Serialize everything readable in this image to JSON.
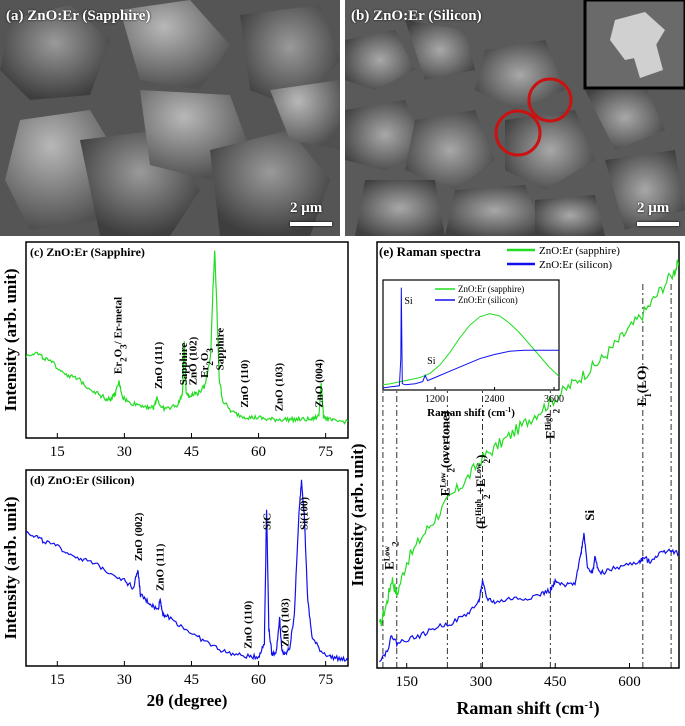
{
  "sem_a": {
    "label": "(a) ZnO:Er (Sapphire)",
    "scale": "2 μm"
  },
  "sem_b": {
    "label": "(b) ZnO:Er (Silicon)",
    "scale": "2 μm"
  },
  "colors": {
    "green": "#22dd22",
    "blue": "#1010ee",
    "red": "#cc1111"
  },
  "chart_data": [
    {
      "type": "line",
      "id": "c",
      "title": "(c) ZnO:Er (Sapphire)",
      "ylabel": "Intensity (arb. unit)",
      "xlim": [
        8,
        80
      ],
      "xticks": [
        15,
        30,
        45,
        60,
        75
      ],
      "color": "green",
      "series": [
        {
          "x": [
            8,
            10,
            12,
            14,
            16,
            18,
            20,
            22,
            24,
            26,
            27,
            28,
            28.8,
            29.6,
            31,
            33,
            35,
            36.5,
            37.3,
            38.2,
            40,
            42,
            43.0,
            43.4,
            43.8,
            44.5,
            45.3,
            46.5,
            48,
            49.3,
            49.8,
            50.2,
            50.6,
            51.2,
            52,
            54,
            56,
            58,
            60,
            62,
            64,
            66,
            68,
            70,
            72,
            73.5,
            74.0,
            74.5,
            75.5,
            77,
            80
          ],
          "y": [
            0.44,
            0.46,
            0.43,
            0.4,
            0.36,
            0.33,
            0.31,
            0.27,
            0.24,
            0.21,
            0.21,
            0.24,
            0.3,
            0.22,
            0.19,
            0.18,
            0.17,
            0.16,
            0.22,
            0.16,
            0.16,
            0.18,
            0.24,
            0.52,
            0.25,
            0.22,
            0.24,
            0.24,
            0.28,
            0.45,
            0.8,
            1.0,
            0.75,
            0.32,
            0.2,
            0.14,
            0.12,
            0.11,
            0.11,
            0.1,
            0.1,
            0.1,
            0.1,
            0.1,
            0.1,
            0.12,
            0.3,
            0.12,
            0.1,
            0.09,
            0.09
          ]
        }
      ],
      "annotations": [
        {
          "text": "Er",
          "sub": "2",
          "text2": "O",
          "sub2": "3",
          "text3": "/ Er-metal",
          "x": 28.5
        },
        {
          "text": "ZnO (111)",
          "x": 37.5
        },
        {
          "text": "Sapphire",
          "x": 43.1
        },
        {
          "text": "ZnO (102)",
          "x": 45.2
        },
        {
          "text": "Er",
          "sub": "2",
          "text2": "O",
          "sub2": "3",
          "x": 47.8
        },
        {
          "text": "Sapphire",
          "x": 51.3
        },
        {
          "text": "ZnO (110)",
          "x": 56.8
        },
        {
          "text": "ZnO (103)",
          "x": 64.5
        },
        {
          "text": "ZnO (004)",
          "x": 73.4
        }
      ]
    },
    {
      "type": "line",
      "id": "d",
      "title": "(d) ZnO:Er (Silicon)",
      "ylabel": "Intensity (arb. unit)",
      "xlabel": "2θ (degree)",
      "xlim": [
        8,
        80
      ],
      "xticks": [
        15,
        30,
        45,
        60,
        75
      ],
      "color": "blue",
      "series": [
        {
          "x": [
            8,
            10,
            12,
            15,
            18,
            21,
            24,
            27,
            30,
            32,
            33.0,
            33.6,
            34.5,
            36,
            37.5,
            38.0,
            38.6,
            40,
            43,
            46,
            49,
            52,
            55,
            58,
            60,
            61.3,
            61.8,
            62.3,
            63,
            64,
            64.7,
            65.2,
            66,
            67,
            68,
            69,
            69.6,
            70.2,
            71,
            72,
            74,
            76,
            78,
            80
          ],
          "y": [
            0.72,
            0.7,
            0.67,
            0.64,
            0.6,
            0.57,
            0.54,
            0.5,
            0.46,
            0.42,
            0.52,
            0.38,
            0.36,
            0.33,
            0.3,
            0.36,
            0.28,
            0.26,
            0.21,
            0.16,
            0.12,
            0.08,
            0.06,
            0.05,
            0.05,
            0.12,
            0.85,
            0.2,
            0.06,
            0.08,
            0.26,
            0.08,
            0.06,
            0.1,
            0.28,
            0.8,
            1.0,
            0.82,
            0.35,
            0.15,
            0.08,
            0.05,
            0.04,
            0.03
          ]
        }
      ],
      "annotations": [
        {
          "text": "ZnO (002)",
          "x": 33.0
        },
        {
          "text": "ZnO (111)",
          "x": 37.8
        },
        {
          "text": "ZnO (110)",
          "x": 57.5
        },
        {
          "text": "SiC",
          "x": 61.8
        },
        {
          "text": "ZnO (103)",
          "x": 65.8
        },
        {
          "text": "Si(100)",
          "x": 70.0
        }
      ]
    },
    {
      "type": "line",
      "id": "e",
      "title": "(e) Raman spectra",
      "ylabel": "Intensity (arb. unit)",
      "xlabel_main": "Raman shift (cm",
      "xlabel_sup": "-1",
      "xlabel_end": ")",
      "xlim": [
        90,
        700
      ],
      "xticks": [
        150,
        300,
        450,
        600
      ],
      "legend": {
        "position": "top-right",
        "entries": [
          "ZnO:Er (sapphire)",
          "ZnO:Er (silicon)"
        ]
      },
      "series": [
        {
          "name": "ZnO:Er (sapphire)",
          "color": "green",
          "x": [
            95,
            110,
            120,
            130,
            150,
            180,
            210,
            240,
            270,
            300,
            330,
            360,
            390,
            420,
            450,
            480,
            510,
            540,
            570,
            600,
            630,
            660,
            690,
            700
          ],
          "y": [
            0.1,
            0.16,
            0.22,
            0.18,
            0.26,
            0.32,
            0.37,
            0.42,
            0.46,
            0.51,
            0.54,
            0.57,
            0.6,
            0.63,
            0.66,
            0.69,
            0.72,
            0.75,
            0.79,
            0.83,
            0.87,
            0.92,
            0.97,
            0.99
          ]
        },
        {
          "name": "ZnO:Er (silicon)",
          "color": "blue",
          "x": [
            95,
            110,
            120,
            130,
            150,
            180,
            210,
            240,
            270,
            295,
            303,
            312,
            330,
            360,
            390,
            420,
            440,
            450,
            470,
            490,
            502,
            508,
            515,
            525,
            530,
            540,
            560,
            590,
            620,
            630,
            640,
            660,
            680,
            700
          ],
          "y": [
            0.02,
            0.04,
            0.08,
            0.06,
            0.07,
            0.08,
            0.1,
            0.11,
            0.13,
            0.16,
            0.21,
            0.17,
            0.16,
            0.17,
            0.17,
            0.18,
            0.19,
            0.21,
            0.2,
            0.21,
            0.28,
            0.33,
            0.25,
            0.23,
            0.27,
            0.23,
            0.24,
            0.25,
            0.26,
            0.27,
            0.26,
            0.28,
            0.29,
            0.28
          ]
        }
      ],
      "annotations": [
        {
          "text": "E",
          "sub": "2",
          "sup": "Low",
          "x": 115
        },
        {
          "text": "E",
          "sub": "2",
          "sup": "Low",
          "text2": "(overtone)",
          "x": 228
        },
        {
          "text": "(E",
          "sub": "2",
          "sup": "High",
          "text2": "+E",
          "sub2": "2",
          "sup2": "Low",
          "text3": ")",
          "x": 300
        },
        {
          "text": "E",
          "sub": "2",
          "sup": "High",
          "x": 440
        },
        {
          "text": "Si",
          "x": 520
        },
        {
          "text": "E",
          "sub": "1",
          "text2": "(LO)",
          "x": 625
        }
      ],
      "vlines": [
        102,
        130,
        232,
        303,
        440,
        627,
        684
      ],
      "inset": {
        "xlabel_main": "Raman shift (cm",
        "xlabel_sup": "-1",
        "xlabel_end": ")",
        "xlim": [
          150,
          3700
        ],
        "xticks": [
          1200,
          2400,
          3600
        ],
        "legend": [
          "ZnO:Er (sapphire)",
          "ZnO:Er (silicon)"
        ],
        "annotations": [
          {
            "text": "Si",
            "x": 520
          },
          {
            "text": "Si",
            "x": 1000
          }
        ],
        "series": [
          {
            "color": "green",
            "x": [
              150,
              300,
              500,
              700,
              900,
              1100,
              1300,
              1500,
              1700,
              1900,
              2100,
              2300,
              2500,
              2700,
              2900,
              3100,
              3300,
              3500,
              3700
            ],
            "y": [
              0.05,
              0.06,
              0.08,
              0.1,
              0.12,
              0.16,
              0.24,
              0.36,
              0.5,
              0.62,
              0.7,
              0.73,
              0.71,
              0.64,
              0.55,
              0.44,
              0.33,
              0.22,
              0.13
            ]
          },
          {
            "color": "blue",
            "x": [
              150,
              300,
              480,
              510,
              520,
              540,
              600,
              800,
              950,
              1000,
              1050,
              1200,
              1500,
              1800,
              2100,
              2400,
              2700,
              3000,
              3300,
              3700
            ],
            "y": [
              0.02,
              0.03,
              0.04,
              0.3,
              0.98,
              0.06,
              0.05,
              0.06,
              0.08,
              0.14,
              0.09,
              0.12,
              0.18,
              0.24,
              0.3,
              0.34,
              0.37,
              0.38,
              0.38,
              0.38
            ]
          }
        ]
      }
    }
  ]
}
